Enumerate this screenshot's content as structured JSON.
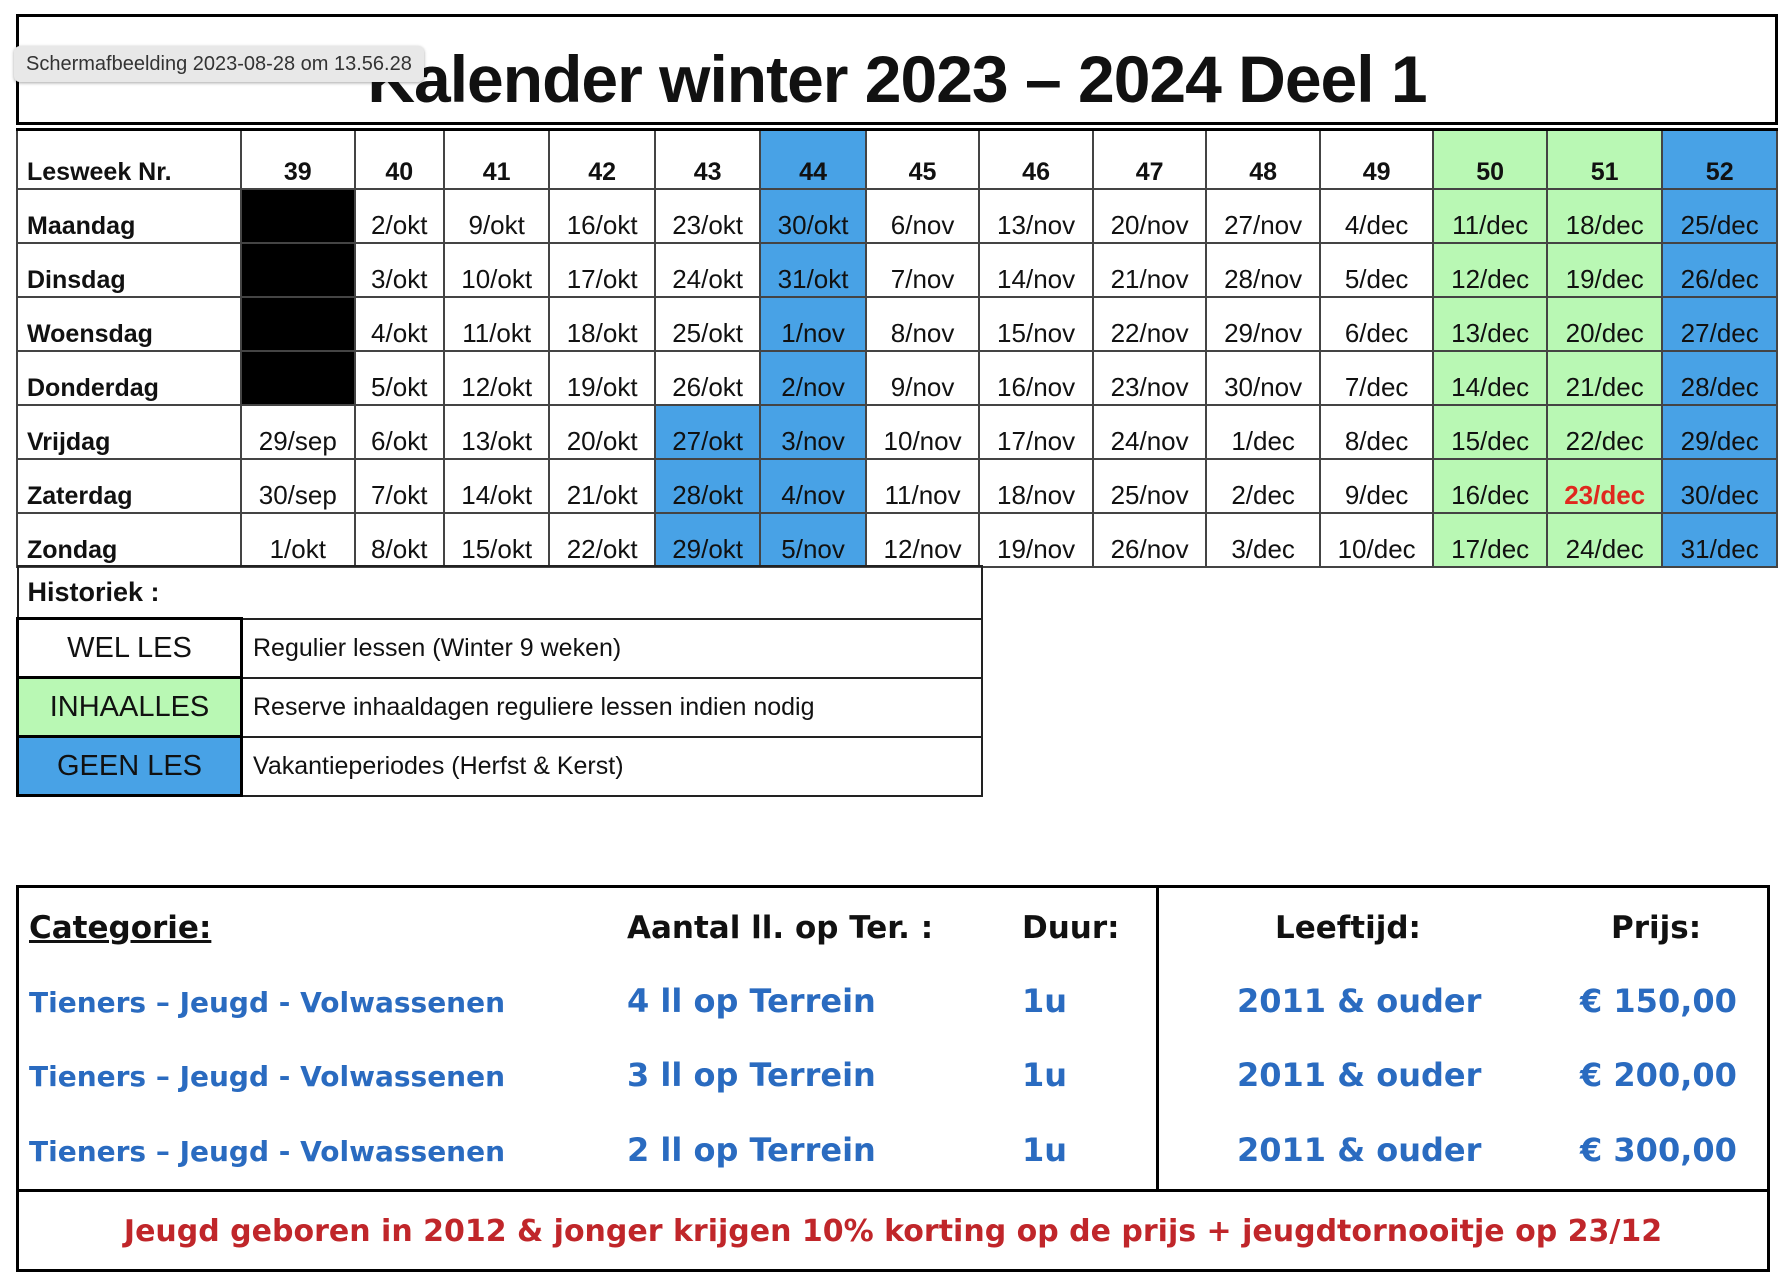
{
  "tooltip": "Schermafbeelding 2023-08-28 om 13.56.28",
  "title": "Kalender winter 2023 – 2024 Deel 1",
  "calendar": {
    "header_label": "Lesweek Nr.",
    "weeks": [
      "39",
      "40",
      "41",
      "42",
      "43",
      "44",
      "45",
      "46",
      "47",
      "48",
      "49",
      "50",
      "51",
      "52"
    ],
    "rows": [
      {
        "day": "Maandag",
        "cells": [
          "",
          "2/okt",
          "9/okt",
          "16/okt",
          "23/okt",
          "30/okt",
          "6/nov",
          "13/nov",
          "20/nov",
          "27/nov",
          "4/dec",
          "11/dec",
          "18/dec",
          "25/dec"
        ]
      },
      {
        "day": "Dinsdag",
        "cells": [
          "",
          "3/okt",
          "10/okt",
          "17/okt",
          "24/okt",
          "31/okt",
          "7/nov",
          "14/nov",
          "21/nov",
          "28/nov",
          "5/dec",
          "12/dec",
          "19/dec",
          "26/dec"
        ]
      },
      {
        "day": "Woensdag",
        "cells": [
          "",
          "4/okt",
          "11/okt",
          "18/okt",
          "25/okt",
          "1/nov",
          "8/nov",
          "15/nov",
          "22/nov",
          "29/nov",
          "6/dec",
          "13/dec",
          "20/dec",
          "27/dec"
        ]
      },
      {
        "day": "Donderdag",
        "cells": [
          "",
          "5/okt",
          "12/okt",
          "19/okt",
          "26/okt",
          "2/nov",
          "9/nov",
          "16/nov",
          "23/nov",
          "30/nov",
          "7/dec",
          "14/dec",
          "21/dec",
          "28/dec"
        ]
      },
      {
        "day": "Vrijdag",
        "cells": [
          "29/sep",
          "6/okt",
          "13/okt",
          "20/okt",
          "27/okt",
          "3/nov",
          "10/nov",
          "17/nov",
          "24/nov",
          "1/dec",
          "8/dec",
          "15/dec",
          "22/dec",
          "29/dec"
        ]
      },
      {
        "day": "Zaterdag",
        "cells": [
          "30/sep",
          "7/okt",
          "14/okt",
          "21/okt",
          "28/okt",
          "4/nov",
          "11/nov",
          "18/nov",
          "25/nov",
          "2/dec",
          "9/dec",
          "16/dec",
          "23/dec",
          "30/dec"
        ]
      },
      {
        "day": "Zondag",
        "cells": [
          "1/okt",
          "8/okt",
          "15/okt",
          "22/okt",
          "29/okt",
          "5/nov",
          "12/nov",
          "19/nov",
          "26/nov",
          "3/dec",
          "10/dec",
          "17/dec",
          "24/dec",
          "31/dec"
        ]
      }
    ],
    "colors": {
      "blue": "#48a2e6",
      "green": "#b9f8b4",
      "black": "#000000",
      "red": "#e0281e"
    }
  },
  "legend": {
    "title": "Historiek :",
    "items": [
      {
        "key": "WEL LES",
        "desc": "Regulier lessen (Winter 9 weken)"
      },
      {
        "key": "INHAALLES",
        "desc": "Reserve inhaaldagen reguliere lessen indien nodig"
      },
      {
        "key": "GEEN LES",
        "desc": "Vakantieperiodes (Herfst & Kerst)"
      }
    ]
  },
  "pricing": {
    "headers": {
      "category": "Categorie:",
      "players": "Aantal ll. op Ter. :",
      "duration": "Duur:",
      "age": "Leeftijd:",
      "price": "Prijs:"
    },
    "rows": [
      {
        "category": "Tieners – Jeugd - Volwassenen",
        "players": "4 ll op Terrein",
        "duration": "1u",
        "age": "2011 & ouder",
        "price": "€ 150,00"
      },
      {
        "category": "Tieners – Jeugd - Volwassenen",
        "players": "3 ll op Terrein",
        "duration": "1u",
        "age": "2011 & ouder",
        "price": "€ 200,00"
      },
      {
        "category": "Tieners – Jeugd - Volwassenen",
        "players": "2 ll op Terrein",
        "duration": "1u",
        "age": "2011 & ouder",
        "price": "€ 300,00"
      }
    ],
    "note": "Jeugd geboren in 2012 & jonger krijgen 10% korting op de prijs + jeugdtornooitje op 23/12"
  }
}
